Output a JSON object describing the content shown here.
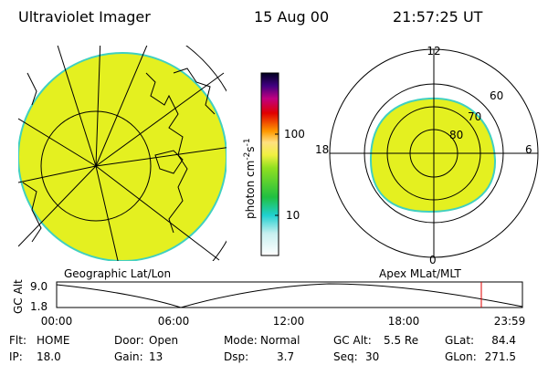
{
  "header": {
    "instrument": "Ultraviolet Imager",
    "date": "15 Aug 00",
    "time": "21:57:25 UT"
  },
  "colorbar": {
    "label": "photon cm",
    "exp1": "-2",
    "unit2": "s",
    "exp2": "-1",
    "ticks": [
      "100",
      "10"
    ]
  },
  "polar": {
    "mlt": [
      "12",
      "18",
      "6",
      "0"
    ],
    "mlat": [
      "60",
      "70",
      "80"
    ]
  },
  "strip": {
    "left_title": "Geographic Lat/Lon",
    "right_title": "Apex MLat/MLT",
    "ylabel": "GC Alt",
    "yticks": [
      "9.0",
      "1.8"
    ],
    "xticks": [
      "00:00",
      "06:00",
      "12:00",
      "18:00",
      "23:59"
    ]
  },
  "info": [
    [
      [
        "Flt:",
        "HOME"
      ],
      [
        "Door:",
        "Open"
      ],
      [
        "Mode:",
        "Normal"
      ],
      [
        "GC Alt:",
        "5.5 Re"
      ],
      [
        "GLat:",
        "84.4"
      ]
    ],
    [
      [
        "IP:",
        "18.0"
      ],
      [
        "Gain:",
        "13"
      ],
      [
        "Dsp:",
        "3.7"
      ],
      [
        "Seq:",
        "30"
      ],
      [
        "GLon:",
        "271.5"
      ]
    ]
  ]
}
